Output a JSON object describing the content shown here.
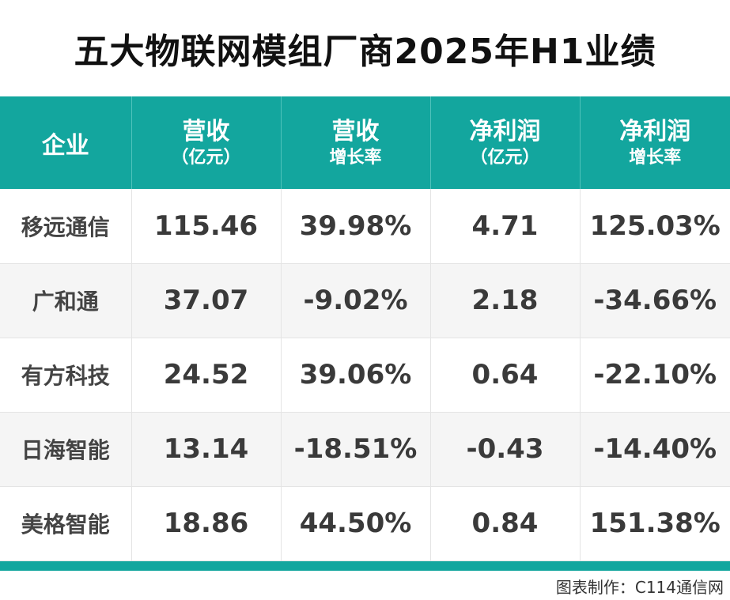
{
  "title": "五大物联网模组厂商2025年H1业绩",
  "chart_data": {
    "type": "table",
    "title": "五大物联网模组厂商2025年H1业绩",
    "columns": [
      {
        "main": "企业",
        "sub": ""
      },
      {
        "main": "营收",
        "sub": "（亿元）"
      },
      {
        "main": "营收",
        "sub": "增长率"
      },
      {
        "main": "净利润",
        "sub": "（亿元）"
      },
      {
        "main": "净利润",
        "sub": "增长率"
      }
    ],
    "rows": [
      {
        "name": "移远通信",
        "revenue": "115.46",
        "revenue_growth": "39.98%",
        "net_profit": "4.71",
        "profit_growth": "125.03%"
      },
      {
        "name": "广和通",
        "revenue": "37.07",
        "revenue_growth": "-9.02%",
        "net_profit": "2.18",
        "profit_growth": "-34.66%"
      },
      {
        "name": "有方科技",
        "revenue": "24.52",
        "revenue_growth": "39.06%",
        "net_profit": "0.64",
        "profit_growth": "-22.10%"
      },
      {
        "name": "日海智能",
        "revenue": "13.14",
        "revenue_growth": "-18.51%",
        "net_profit": "-0.43",
        "profit_growth": "-14.40%"
      },
      {
        "name": "美格智能",
        "revenue": "18.86",
        "revenue_growth": "44.50%",
        "net_profit": "0.84",
        "profit_growth": "151.38%"
      }
    ]
  },
  "credit": "图表制作：C114通信网",
  "colors": {
    "header_bg": "#13a69e",
    "row_alt_bg": "#f5f5f5",
    "text": "#3a3a3a"
  }
}
